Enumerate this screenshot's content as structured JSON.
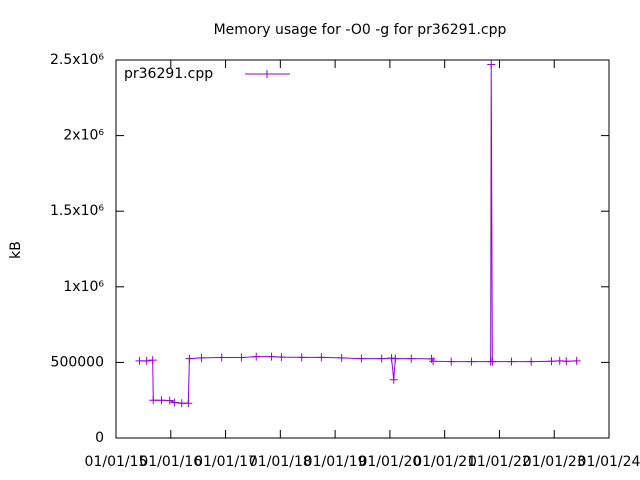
{
  "chart_data": {
    "type": "line",
    "title": "Memory usage for -O0 -g for pr36291.cpp",
    "y_label": "kB",
    "x": [
      2015.22,
      2015.35,
      2015.46,
      2015.47,
      2015.62,
      2015.77,
      2015.86,
      2015.99,
      2016.11,
      2016.13,
      2016.35,
      2016.72,
      2017.08,
      2017.35,
      2017.63,
      2017.81,
      2018.18,
      2018.54,
      2018.91,
      2019.27,
      2019.64,
      2019.82,
      2019.86,
      2019.89,
      2020.18,
      2020.55,
      2020.58,
      2020.91,
      2021.28,
      2021.63,
      2021.64,
      2021.66,
      2022.01,
      2022.37,
      2022.74,
      2022.89,
      2023.01,
      2023.2
    ],
    "series": [
      {
        "name": "pr36291.cpp",
        "color": "#9400d3",
        "values": [
          510000,
          510000,
          515000,
          250000,
          250000,
          248000,
          235000,
          230000,
          230000,
          525000,
          530000,
          532000,
          532000,
          538000,
          538000,
          535000,
          533000,
          533000,
          530000,
          525000,
          525000,
          528000,
          385000,
          525000,
          525000,
          523000,
          508000,
          505000,
          505000,
          505000,
          2470000,
          505000,
          505000,
          505000,
          508000,
          510000,
          508000,
          510000
        ]
      }
    ],
    "xlim": [
      2014.79,
      2023.79
    ],
    "xticks": [
      {
        "value": 2014.79,
        "label": "01/01/15"
      },
      {
        "value": 2015.79,
        "label": "01/01/16"
      },
      {
        "value": 2016.79,
        "label": "01/01/17"
      },
      {
        "value": 2017.79,
        "label": "01/01/18"
      },
      {
        "value": 2018.79,
        "label": "01/01/19"
      },
      {
        "value": 2019.79,
        "label": "01/01/20"
      },
      {
        "value": 2020.79,
        "label": "01/01/21"
      },
      {
        "value": 2021.79,
        "label": "01/01/22"
      },
      {
        "value": 2022.79,
        "label": "01/01/23"
      },
      {
        "value": 2023.79,
        "label": "01/01/24"
      }
    ],
    "ylim": [
      0,
      2500000
    ],
    "yticks": [
      0,
      500000,
      {
        "value": 1000000,
        "label": "1x10⁶"
      },
      {
        "value": 1500000,
        "label": "1.5x10⁶"
      },
      {
        "value": 2000000,
        "label": "2x10⁶"
      },
      {
        "value": 2500000,
        "label": "2.5x10⁶"
      }
    ],
    "legend": "top-left"
  }
}
